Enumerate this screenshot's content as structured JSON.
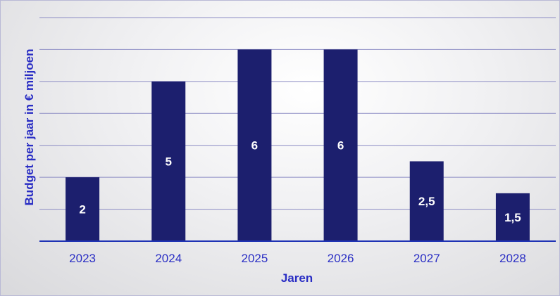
{
  "chart_data": {
    "type": "bar",
    "categories": [
      "2023",
      "2024",
      "2025",
      "2026",
      "2027",
      "2028"
    ],
    "values": [
      2,
      5,
      6,
      6,
      2.5,
      1.5
    ],
    "value_labels": [
      "2",
      "5",
      "6",
      "6",
      "2,5",
      "1,5"
    ],
    "title": "",
    "xlabel": "Jaren",
    "ylabel": "Budget per jaar in € miljoen",
    "ylim": [
      0,
      7
    ],
    "grid": true,
    "legend": "none",
    "colors": {
      "bar": "#1c1f6e",
      "axis_text": "#2a2ec4",
      "gridline": "#8c8cc4",
      "axis_line": "#1f33b5",
      "data_label": "#ffffff"
    }
  }
}
